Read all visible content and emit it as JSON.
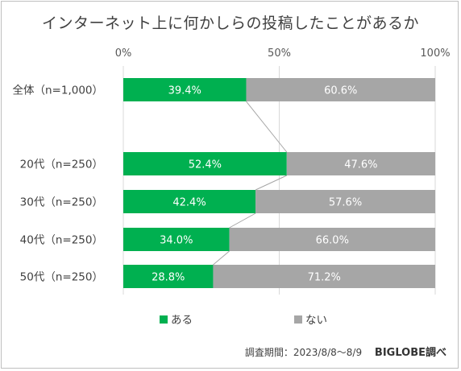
{
  "title": "インターネット上に何かしらの投稿したことがあるか",
  "source": {
    "text": "調査期間：2023/8/8～8/9",
    "brand": "BIGLOBE調べ"
  },
  "colors": {
    "yes": "#00b050",
    "no": "#a6a6a6",
    "connector": "#a6a6a6",
    "grid": "#d9d9d9"
  },
  "chart_data": {
    "type": "bar",
    "orientation": "horizontal-stacked-100",
    "categories": [
      "全体（n=1,000）",
      "20代（n=250）",
      "30代（n=250）",
      "40代（n=250）",
      "50代（n=250）"
    ],
    "series": [
      {
        "name": "ある",
        "values": [
          39.4,
          52.4,
          42.4,
          34.0,
          28.8
        ],
        "labels": [
          "39.4%",
          "52.4%",
          "42.4%",
          "34.0%",
          "28.8%"
        ]
      },
      {
        "name": "ない",
        "values": [
          60.6,
          47.6,
          57.6,
          66.0,
          71.2
        ],
        "labels": [
          "60.6%",
          "47.6%",
          "57.6%",
          "66.0%",
          "71.2%"
        ]
      }
    ],
    "xlim": [
      0,
      100
    ],
    "xticks": [
      "0%",
      "50%",
      "100%"
    ],
    "legend": "bottom",
    "grid": true
  }
}
